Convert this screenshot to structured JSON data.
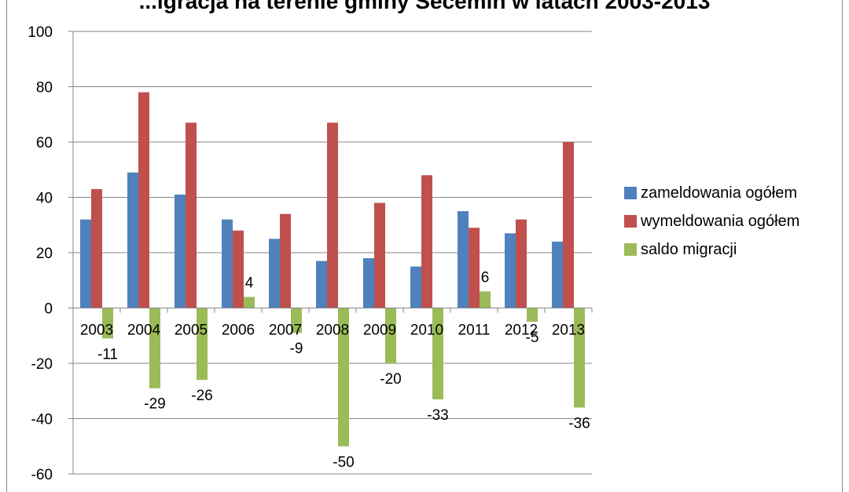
{
  "chart_data": {
    "type": "bar",
    "title": "...igracja na terenie gminy Secemin w latach 2003-2013",
    "categories": [
      "2003",
      "2004",
      "2005",
      "2006",
      "2007",
      "2008",
      "2009",
      "2010",
      "2011",
      "2012",
      "2013"
    ],
    "series": [
      {
        "name": "zameldowania ogółem",
        "color": "#4F81BD",
        "values": [
          32,
          49,
          41,
          32,
          25,
          17,
          18,
          15,
          35,
          27,
          24
        ]
      },
      {
        "name": "wymeldowania ogółem",
        "color": "#C0504D",
        "values": [
          43,
          78,
          67,
          28,
          34,
          67,
          38,
          48,
          29,
          32,
          60
        ]
      },
      {
        "name": "saldo migracji",
        "color": "#9BBB59",
        "values": [
          -11,
          -29,
          -26,
          4,
          -9,
          -50,
          -20,
          -33,
          6,
          -5,
          -36
        ],
        "data_labels": true
      }
    ],
    "ylim": [
      -60,
      100
    ],
    "yticks": [
      -60,
      -40,
      -20,
      0,
      20,
      40,
      60,
      80,
      100
    ],
    "grid": true,
    "legend_position": "right",
    "xlabel": "",
    "ylabel": ""
  }
}
